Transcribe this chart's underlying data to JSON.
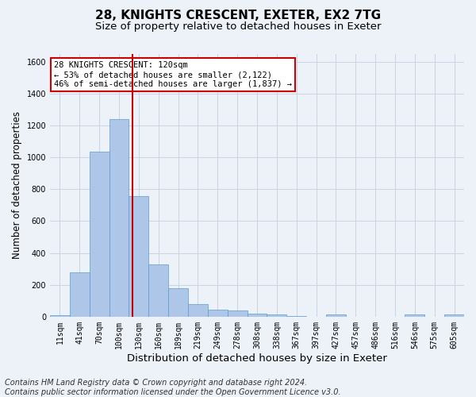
{
  "title1": "28, KNIGHTS CRESCENT, EXETER, EX2 7TG",
  "title2": "Size of property relative to detached houses in Exeter",
  "xlabel": "Distribution of detached houses by size in Exeter",
  "ylabel": "Number of detached properties",
  "bin_labels": [
    "11sqm",
    "41sqm",
    "70sqm",
    "100sqm",
    "130sqm",
    "160sqm",
    "189sqm",
    "219sqm",
    "249sqm",
    "278sqm",
    "308sqm",
    "338sqm",
    "367sqm",
    "397sqm",
    "427sqm",
    "457sqm",
    "486sqm",
    "516sqm",
    "546sqm",
    "575sqm",
    "605sqm"
  ],
  "bar_heights": [
    10,
    280,
    1035,
    1240,
    755,
    330,
    180,
    80,
    45,
    38,
    20,
    15,
    5,
    0,
    15,
    0,
    0,
    0,
    12,
    0,
    12
  ],
  "bar_color": "#aec6e8",
  "bar_edge_color": "#5b9bd5",
  "grid_color": "#c8d4e4",
  "background_color": "#edf1f8",
  "vline_color": "#cc0000",
  "annotation_text": "28 KNIGHTS CRESCENT: 120sqm\n← 53% of detached houses are smaller (2,122)\n46% of semi-detached houses are larger (1,837) →",
  "annotation_box_facecolor": "#ffffff",
  "annotation_box_edgecolor": "#cc0000",
  "footnote": "Contains HM Land Registry data © Crown copyright and database right 2024.\nContains public sector information licensed under the Open Government Licence v3.0.",
  "ylim": [
    0,
    1650
  ],
  "title1_fontsize": 11,
  "title2_fontsize": 9.5,
  "xlabel_fontsize": 9.5,
  "ylabel_fontsize": 8.5,
  "tick_fontsize": 7,
  "footnote_fontsize": 7,
  "vline_bar_index": 3.67
}
